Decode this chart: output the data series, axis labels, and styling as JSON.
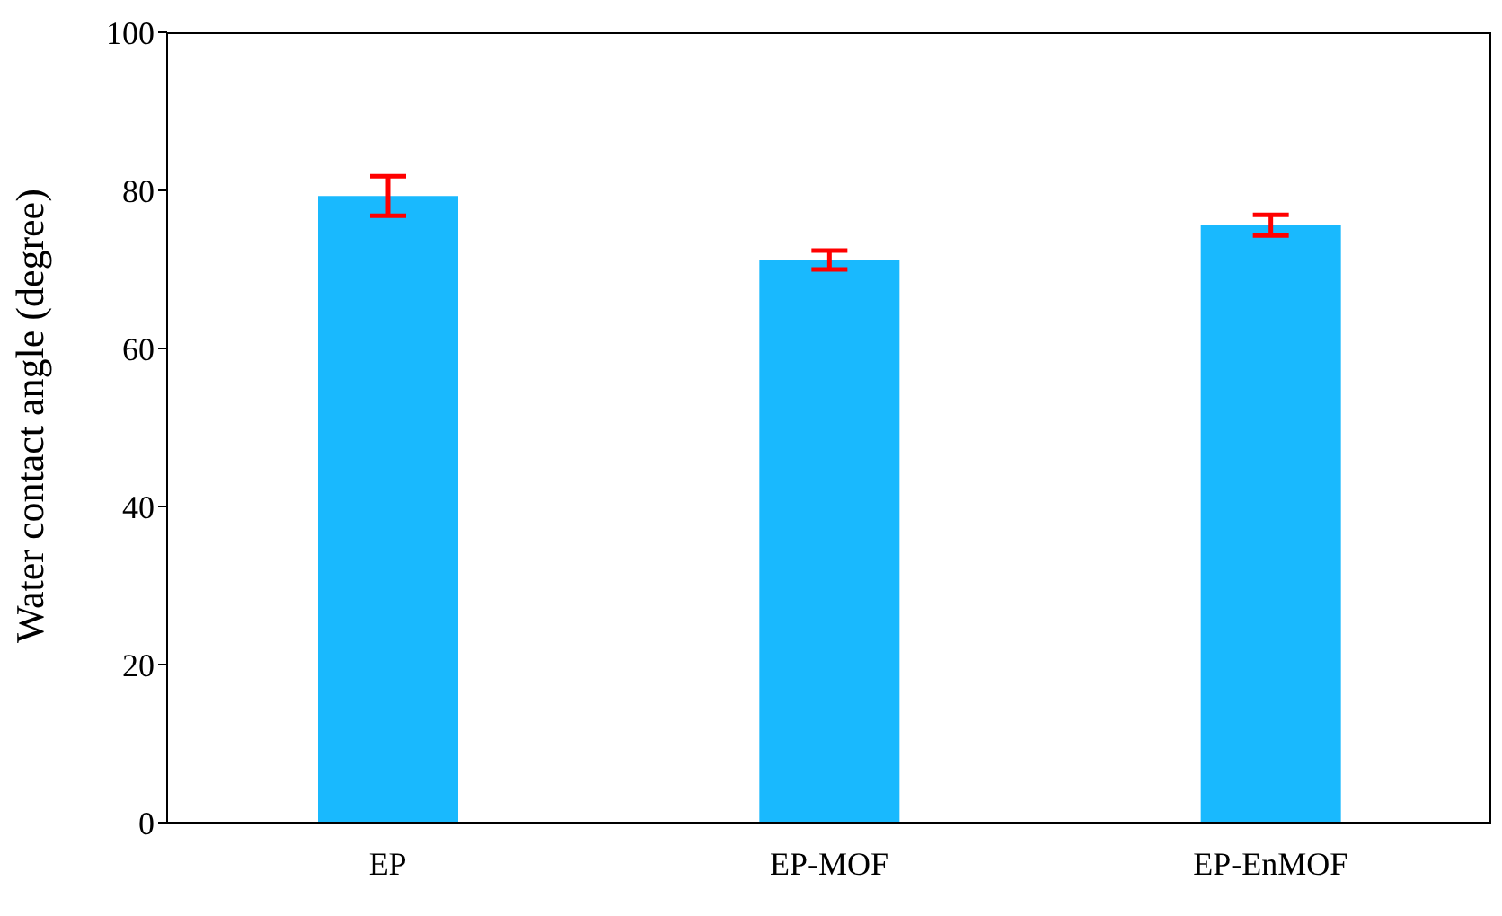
{
  "chart_data": {
    "type": "bar",
    "ylabel": "Water contact angle (degree)",
    "categories": [
      "EP",
      "EP-MOF",
      "EP-EnMOF"
    ],
    "values": [
      79.3,
      71.2,
      75.6
    ],
    "errors": [
      2.5,
      1.2,
      1.3
    ],
    "color": "#19b9fe",
    "ylim": [
      0,
      100
    ],
    "yticks": [
      0,
      20,
      40,
      60,
      80,
      100
    ],
    "grid": false,
    "legend": false
  }
}
